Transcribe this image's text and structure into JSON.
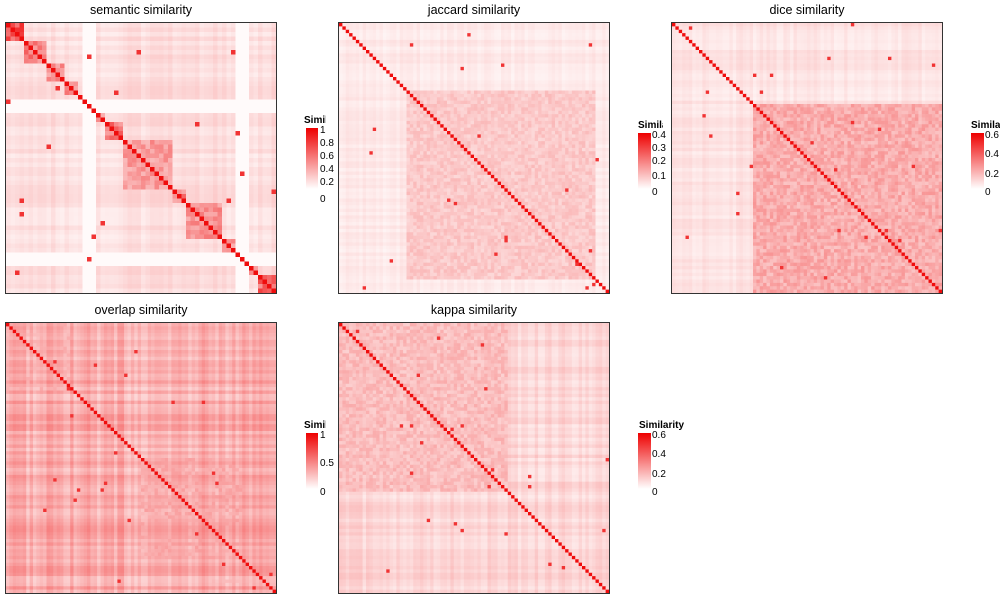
{
  "colors": {
    "low": "#ffffff",
    "high": "#ee0000",
    "grid": "#333333"
  },
  "chart_data": [
    {
      "type": "heatmap",
      "title": "semantic similarity",
      "legend_title": "Similarity",
      "legend_ticks": [
        "1",
        "0.8",
        "0.6",
        "0.4",
        "0.2",
        "0"
      ],
      "legend_max": 1,
      "n": 60,
      "blocks": [
        [
          0,
          4,
          0.8
        ],
        [
          4,
          9,
          0.6
        ],
        [
          9,
          13,
          0.5
        ],
        [
          13,
          16,
          0.5
        ],
        [
          16,
          19,
          0.5
        ],
        [
          19,
          22,
          0.5
        ],
        [
          22,
          26,
          0.6
        ],
        [
          26,
          37,
          0.45
        ],
        [
          37,
          40,
          0.55
        ],
        [
          40,
          48,
          0.5
        ],
        [
          48,
          52,
          0.5
        ],
        [
          52,
          56,
          0.55
        ],
        [
          56,
          60,
          0.7
        ]
      ],
      "white_bands": [
        [
          17,
          20
        ],
        [
          51,
          54
        ]
      ],
      "background_level": 0.12,
      "diagonal_level": 0.95
    },
    {
      "type": "heatmap",
      "title": "jaccard similarity",
      "legend_title": "Similarity",
      "legend_ticks": [
        "0.4",
        "0.3",
        "0.2",
        "0.1",
        "0"
      ],
      "legend_max": 0.45,
      "n": 80,
      "blocks": [
        [
          20,
          76,
          0.25
        ]
      ],
      "background_level": 0.08,
      "diagonal_level": 0.95
    },
    {
      "type": "heatmap",
      "title": "dice similarity",
      "legend_title": "Similarity",
      "legend_ticks": [
        "0.6",
        "0.4",
        "0.2",
        "0"
      ],
      "legend_max": 0.65,
      "n": 80,
      "blocks": [
        [
          24,
          80,
          0.38
        ]
      ],
      "background_level": 0.1,
      "diagonal_level": 0.95
    },
    {
      "type": "heatmap",
      "title": "overlap similarity",
      "legend_title": "Similarity",
      "legend_ticks": [
        "1",
        "0.5",
        "0"
      ],
      "legend_max": 1,
      "n": 80,
      "blocks": [
        [
          0,
          20,
          0.3
        ],
        [
          40,
          70,
          0.35
        ],
        [
          60,
          80,
          0.25
        ]
      ],
      "background_level": 0.3,
      "diagonal_level": 0.95
    },
    {
      "type": "heatmap",
      "title": "kappa similarity",
      "legend_title": "Similarity",
      "legend_ticks": [
        "0.6",
        "0.4",
        "0.2",
        "0"
      ],
      "legend_max": 0.65,
      "n": 80,
      "blocks": [
        [
          0,
          50,
          0.3
        ]
      ],
      "background_level": 0.15,
      "diagonal_level": 0.95
    }
  ]
}
